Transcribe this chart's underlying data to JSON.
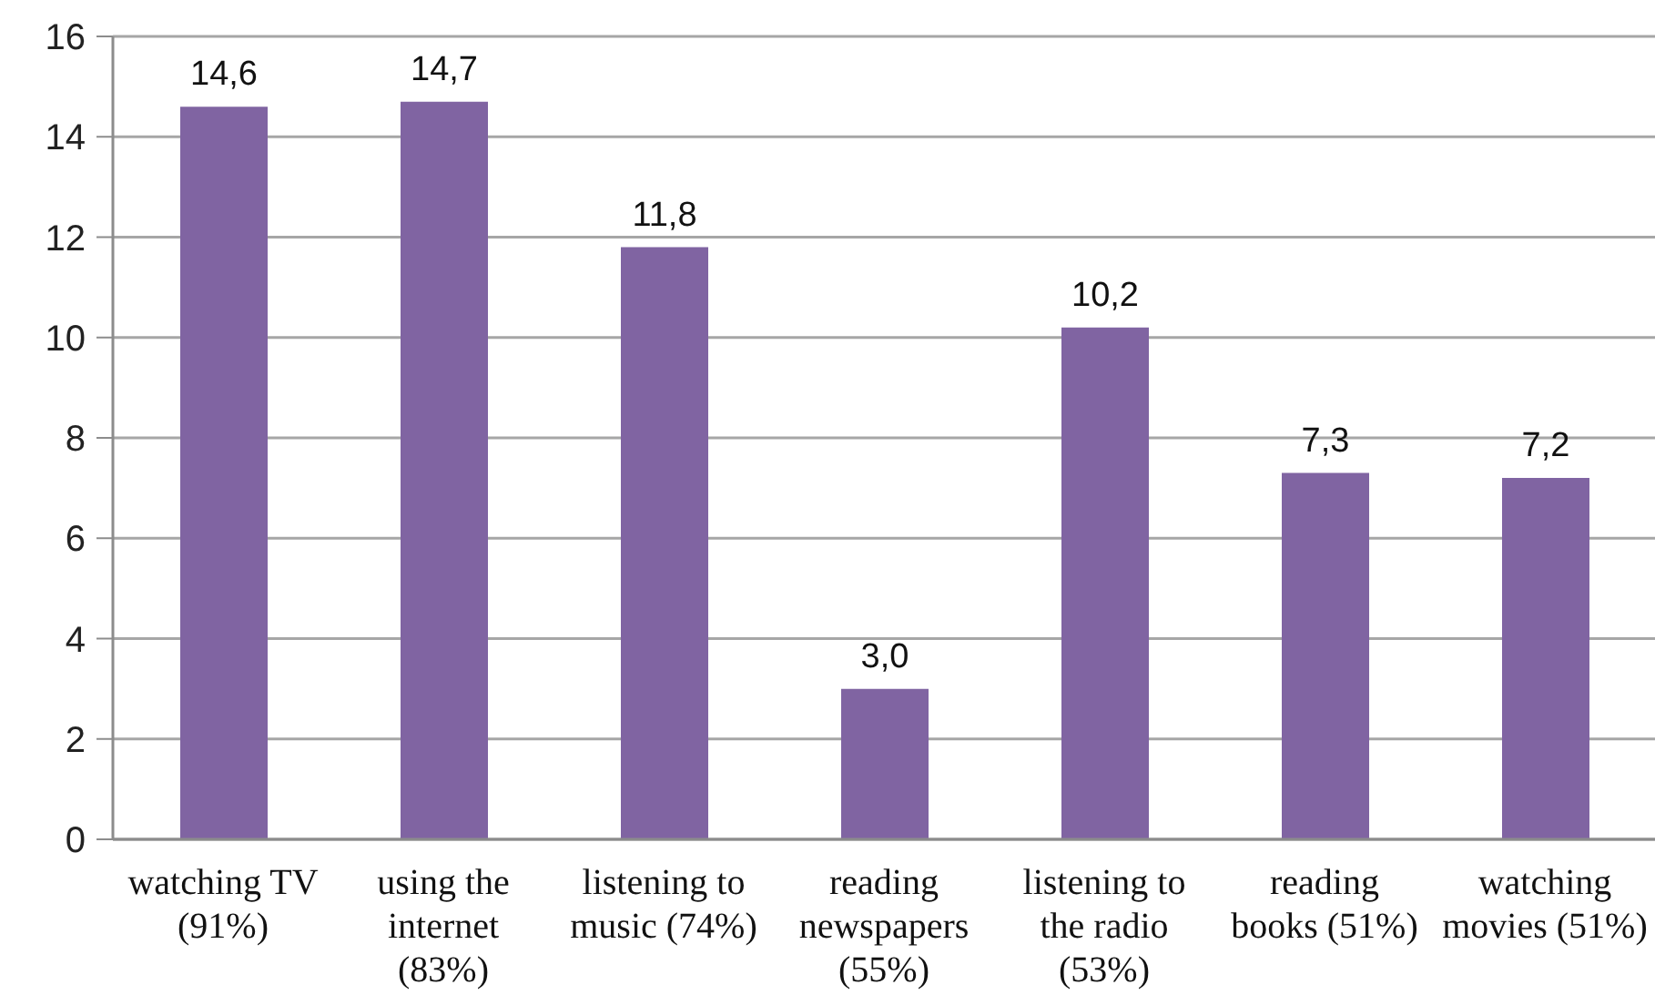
{
  "chart_data": {
    "type": "bar",
    "categories": [
      "watching TV (91%)",
      "using the internet (83%)",
      "listening to music (74%)",
      "reading newspapers (55%)",
      "listening to the radio (53%)",
      "reading books (51%)",
      "watching movies (51%)"
    ],
    "values": [
      14.6,
      14.7,
      11.8,
      3.0,
      10.2,
      7.3,
      7.2
    ],
    "color": "#8064a2",
    "value_labels": [
      "14,6",
      "14,7",
      "11,8",
      "3,0",
      "10,2",
      "7,3",
      "7,2"
    ],
    "ylim": [
      0,
      16
    ],
    "yticks": [
      0,
      2,
      4,
      6,
      8,
      10,
      12,
      14,
      16
    ],
    "grid": "y"
  }
}
